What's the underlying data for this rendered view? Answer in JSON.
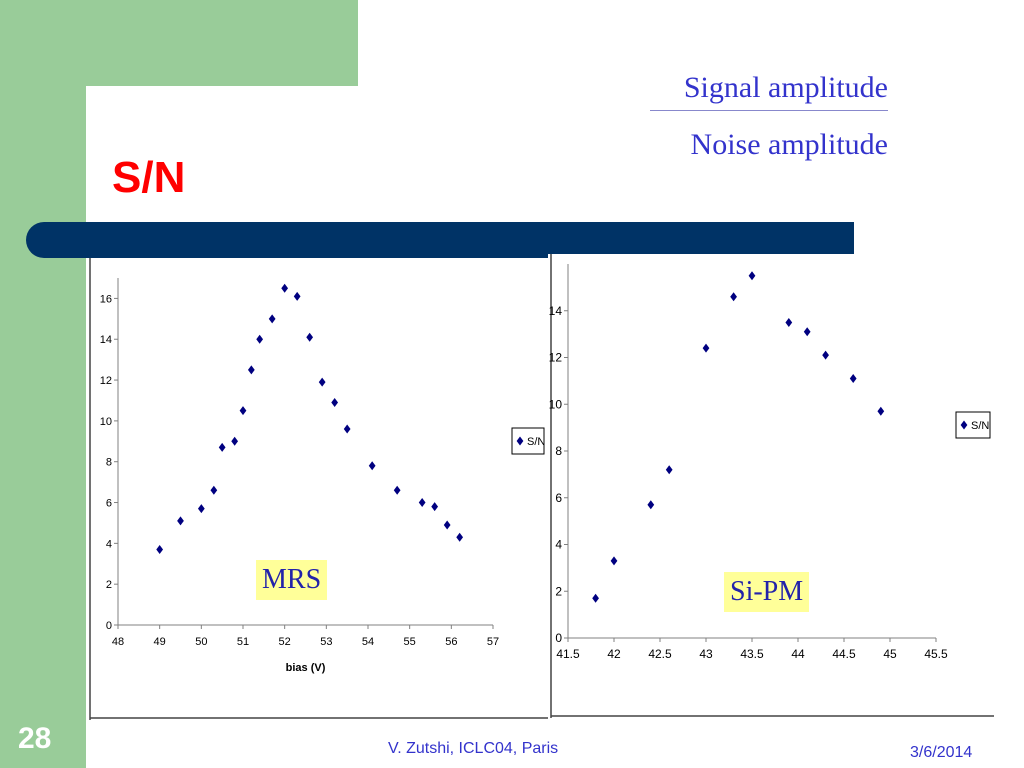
{
  "slide": {
    "title": "S/N",
    "formula_numerator": "Signal amplitude",
    "formula_denominator": "Noise amplitude",
    "slide_number": "28",
    "footer_center": "V. Zutshi, ICLC04, Paris",
    "footer_date": "3/6/2014"
  },
  "colors": {
    "green_bg": "#99cc99",
    "title_red": "#ff0000",
    "bar_navy": "#003366",
    "text_blue": "#3333cc",
    "marker_navy": "#000080",
    "label_bg": "#ffff99"
  },
  "labels": {
    "mrs": "MRS",
    "sipm": "Si-PM"
  },
  "chart_data": [
    {
      "type": "scatter",
      "xlabel": "bias (V)",
      "ylabel": "",
      "xlim": [
        48,
        57
      ],
      "ylim": [
        0,
        17
      ],
      "xticks": [
        "48",
        "49",
        "50",
        "51",
        "52",
        "53",
        "54",
        "55",
        "56",
        "57"
      ],
      "yticks": [
        "0",
        "2",
        "4",
        "6",
        "8",
        "10",
        "12",
        "14",
        "16"
      ],
      "legend": "S/N",
      "legend_position": "right",
      "series": [
        {
          "name": "S/N",
          "x": [
            49,
            49.5,
            50,
            50.3,
            50.5,
            50.8,
            51,
            51.2,
            51.4,
            51.7,
            52,
            52.3,
            52.6,
            52.9,
            53.2,
            53.5,
            54.1,
            54.7,
            55.3,
            55.6,
            55.9,
            56.2
          ],
          "y": [
            3.7,
            5.1,
            5.7,
            6.6,
            8.7,
            9.0,
            10.5,
            12.5,
            14.0,
            15.0,
            16.5,
            16.1,
            14.1,
            11.9,
            10.9,
            9.6,
            7.8,
            6.6,
            6.0,
            5.8,
            4.9,
            4.3
          ]
        }
      ]
    },
    {
      "type": "scatter",
      "xlabel": "",
      "ylabel": "",
      "xlim": [
        41.5,
        45.5
      ],
      "ylim": [
        0,
        16
      ],
      "xticks": [
        "41.5",
        "42",
        "42.5",
        "43",
        "43.5",
        "44",
        "44.5",
        "45",
        "45.5"
      ],
      "yticks": [
        "0",
        "2",
        "4",
        "6",
        "8",
        "10",
        "12",
        "14"
      ],
      "legend": "S/N",
      "legend_position": "right",
      "series": [
        {
          "name": "S/N",
          "x": [
            41.8,
            42,
            42.4,
            42.6,
            43,
            43.3,
            43.5,
            43.9,
            44.1,
            44.3,
            44.6,
            44.9
          ],
          "y": [
            1.7,
            3.3,
            5.7,
            7.2,
            12.4,
            14.6,
            15.5,
            13.5,
            13.1,
            12.1,
            11.1,
            9.7
          ]
        }
      ]
    }
  ]
}
